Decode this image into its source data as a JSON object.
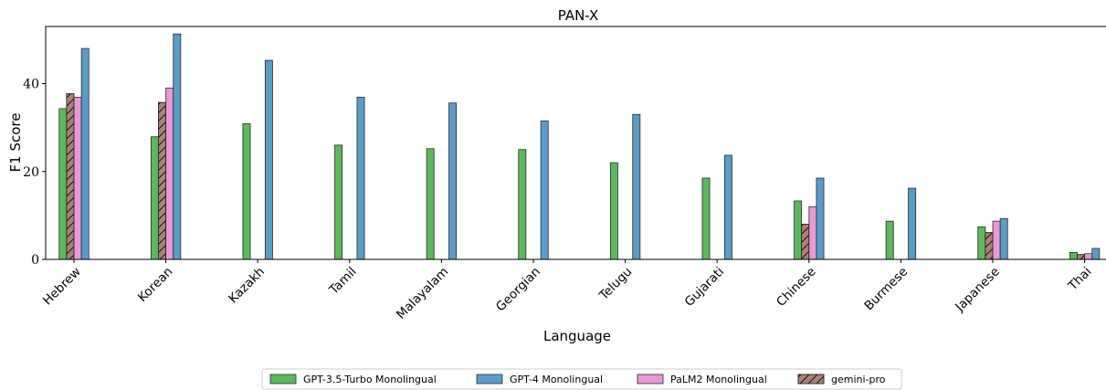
{
  "chart_data": {
    "type": "bar",
    "title": "PAN-X",
    "xlabel": "Language",
    "ylabel": "F1 Score",
    "ylim": [
      0,
      53
    ],
    "yticks": [
      0,
      20,
      40
    ],
    "grid": false,
    "legend_position": "bottom-center",
    "categories": [
      "Hebrew",
      "Korean",
      "Kazakh",
      "Tamil",
      "Malayalam",
      "Georgian",
      "Telugu",
      "Gujarati",
      "Chinese",
      "Burmese",
      "Japanese",
      "Thai"
    ],
    "series": [
      {
        "name": "GPT-3.5-Turbo Monolingual",
        "color": "#5cb85c",
        "values": [
          34.3,
          27.9,
          30.9,
          26.0,
          25.2,
          25.0,
          22.0,
          18.5,
          13.3,
          8.7,
          7.4,
          1.6
        ]
      },
      {
        "name": "GPT-4 Monolingual",
        "color": "#5b9bc8",
        "values": [
          48.0,
          51.3,
          45.3,
          36.9,
          35.6,
          31.5,
          33.0,
          23.7,
          18.5,
          16.2,
          9.3,
          2.5
        ]
      },
      {
        "name": "PaLM2 Monolingual",
        "color": "#e89ad4",
        "values": [
          36.9,
          39.0,
          null,
          null,
          null,
          null,
          null,
          null,
          12.0,
          null,
          8.7,
          1.3
        ]
      },
      {
        "name": "gemini-pro",
        "color": "#a9837a",
        "hatch": true,
        "values": [
          37.7,
          35.7,
          null,
          null,
          null,
          null,
          null,
          null,
          8.0,
          null,
          6.1,
          1.1
        ]
      }
    ]
  }
}
